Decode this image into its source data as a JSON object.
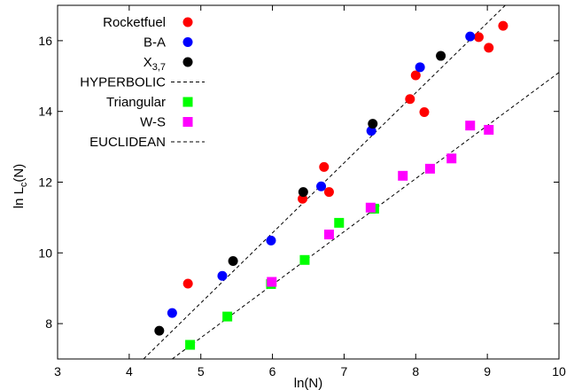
{
  "chart_data": {
    "type": "scatter",
    "title": "",
    "xlabel": "ln(N)",
    "ylabel_main": "ln L",
    "ylabel_sub": "c",
    "ylabel_tail": "(N)",
    "xlim": [
      3,
      10
    ],
    "ylim": [
      7,
      17
    ],
    "x_ticks": [
      3,
      4,
      5,
      6,
      7,
      8,
      9,
      10
    ],
    "y_ticks": [
      8,
      10,
      12,
      14,
      16
    ],
    "legend_position": "top-left",
    "series": [
      {
        "name": "Rocketfuel",
        "marker": "circle",
        "color": "#ff0000",
        "points": [
          [
            4.82,
            9.13
          ],
          [
            6.42,
            11.53
          ],
          [
            6.72,
            12.43
          ],
          [
            6.79,
            11.72
          ],
          [
            7.92,
            14.35
          ],
          [
            8.0,
            15.02
          ],
          [
            8.12,
            13.98
          ],
          [
            8.88,
            16.1
          ],
          [
            9.02,
            15.8
          ],
          [
            9.22,
            16.42
          ]
        ]
      },
      {
        "name": "B-A",
        "marker": "circle",
        "color": "#0000ff",
        "points": [
          [
            4.6,
            8.3
          ],
          [
            5.3,
            9.35
          ],
          [
            5.98,
            10.35
          ],
          [
            6.68,
            11.88
          ],
          [
            7.38,
            13.45
          ],
          [
            8.06,
            15.25
          ],
          [
            8.76,
            16.12
          ]
        ]
      },
      {
        "name": "X",
        "name_sub": "3,7",
        "marker": "circle",
        "color": "#000000",
        "points": [
          [
            4.42,
            7.8
          ],
          [
            5.45,
            9.77
          ],
          [
            6.43,
            11.72
          ],
          [
            7.4,
            13.65
          ],
          [
            8.35,
            15.57
          ]
        ]
      },
      {
        "name": "HYPERBOLIC",
        "marker": "line",
        "color": "#000000",
        "points": [
          [
            4.2,
            7.0
          ],
          [
            9.25,
            17.0
          ]
        ]
      },
      {
        "name": "Triangular",
        "marker": "square",
        "color": "#00ff00",
        "points": [
          [
            4.85,
            7.4
          ],
          [
            5.37,
            8.2
          ],
          [
            5.98,
            9.12
          ],
          [
            6.45,
            9.8
          ],
          [
            6.93,
            10.85
          ],
          [
            7.42,
            11.25
          ]
        ]
      },
      {
        "name": "W-S",
        "marker": "square",
        "color": "#ff00ff",
        "points": [
          [
            5.99,
            9.18
          ],
          [
            6.79,
            10.52
          ],
          [
            7.37,
            11.28
          ],
          [
            7.82,
            12.18
          ],
          [
            8.2,
            12.38
          ],
          [
            8.5,
            12.67
          ],
          [
            8.76,
            13.6
          ],
          [
            9.02,
            13.48
          ]
        ]
      },
      {
        "name": "EUCLIDEAN",
        "marker": "line",
        "color": "#000000",
        "points": [
          [
            4.6,
            7.0
          ],
          [
            10.0,
            15.1
          ]
        ]
      }
    ]
  }
}
